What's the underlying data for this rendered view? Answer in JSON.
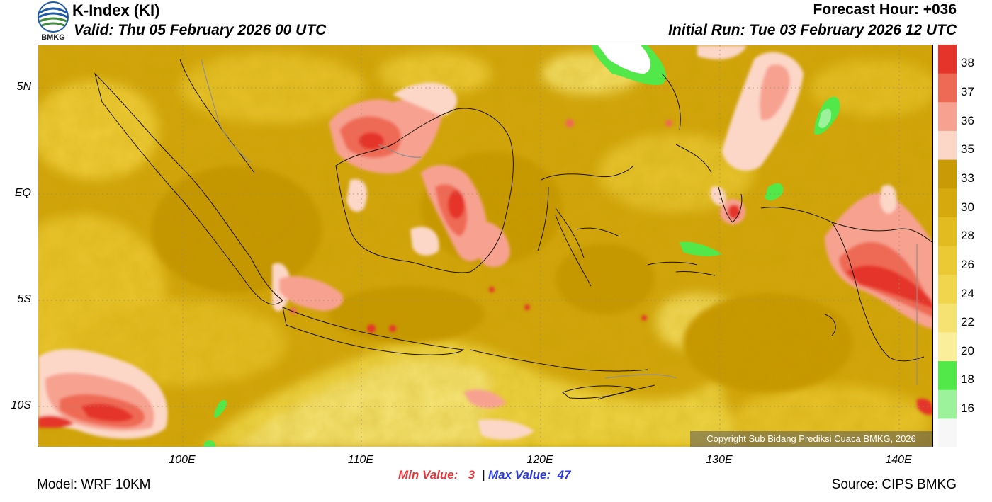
{
  "header": {
    "title": "K-Index (KI)",
    "valid": "Valid: Thu 05 February 2026 00 UTC",
    "forecast_hour": "Forecast Hour: +036",
    "initial_run": "Initial Run: Tue 03 February 2026 12 UTC",
    "logo_text": "BMKG"
  },
  "map": {
    "lat_labels": [
      "5N",
      "EQ",
      "5S",
      "10S"
    ],
    "lon_labels": [
      "100E",
      "110E",
      "120E",
      "130E",
      "140E"
    ],
    "copyright": "Copyright Sub Bidang Prediksi Cuaca BMKG, 2026"
  },
  "legend": {
    "labels": [
      "38",
      "37",
      "36",
      "35",
      "33",
      "30",
      "28",
      "26",
      "24",
      "22",
      "20",
      "18",
      "16"
    ],
    "colors": [
      "#e5352a",
      "#ef6a55",
      "#f7a291",
      "#fcd7c7",
      "#c99a06",
      "#d6aa0e",
      "#e2bb20",
      "#ebc934",
      "#f1d64d",
      "#f6e273",
      "#fbee9b",
      "#52e84a",
      "#9bf29b"
    ]
  },
  "stats": {
    "min_label": "Min Value:",
    "min_value": "3",
    "separator": "|",
    "max_label": "Max Value:",
    "max_value": "47"
  },
  "footer": {
    "model": "Model: WRF 10KM",
    "source": "Source: CIPS BMKG"
  }
}
